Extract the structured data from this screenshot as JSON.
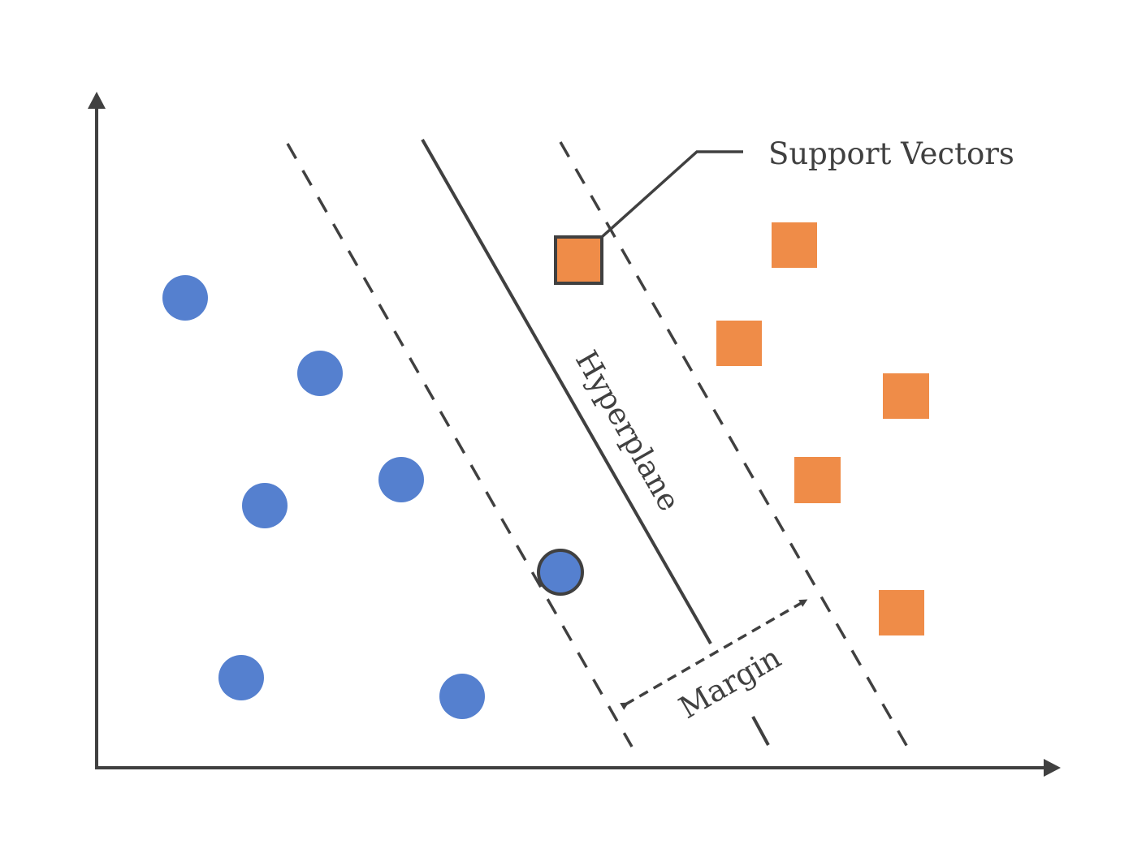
{
  "labels": {
    "support_vectors": "Support Vectors",
    "hyperplane": "Hyperplane",
    "margin": "Margin"
  },
  "colors": {
    "class_a": "#5580CF",
    "class_b": "#EF8C48",
    "ink": "#404040"
  },
  "shapes": {
    "class_a": "circle",
    "class_b": "square"
  },
  "icons": [
    "circle-point",
    "square-point",
    "arrowhead"
  ]
}
